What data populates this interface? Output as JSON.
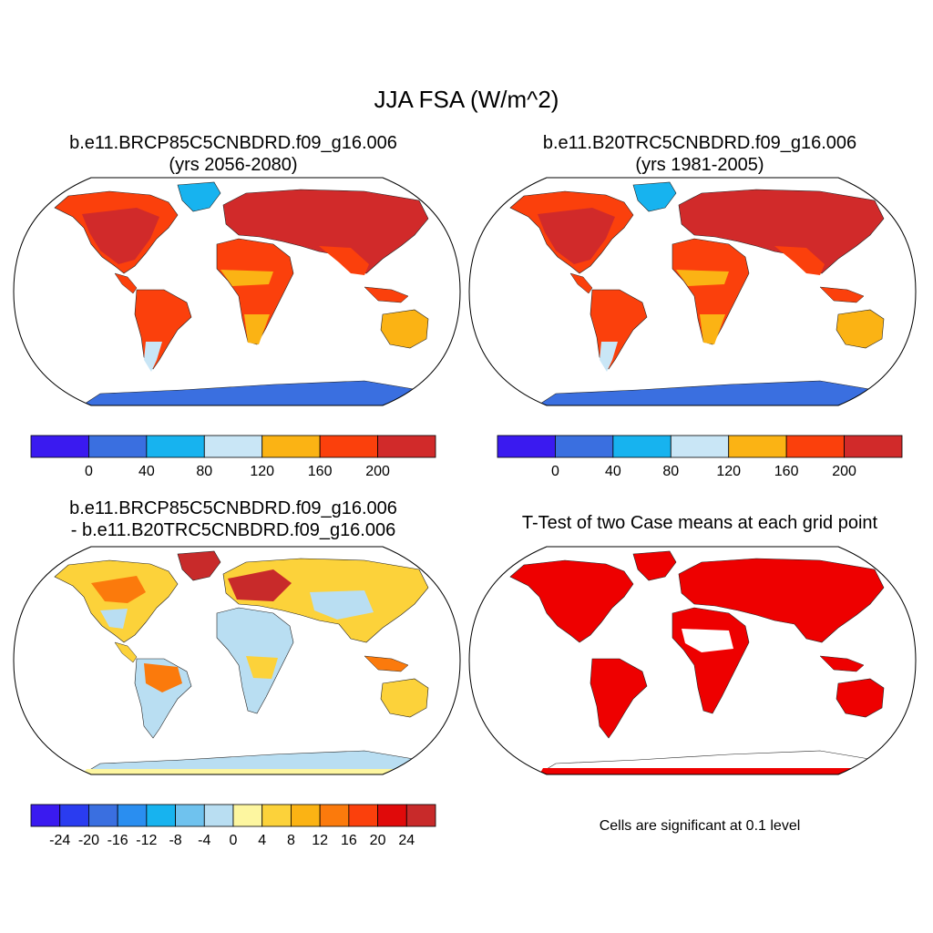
{
  "figure": {
    "title": "JJA FSA (W/m^2)",
    "panels": [
      {
        "id": "case",
        "title_line1": "b.e11.BRCP85C5CNBDRD.f09_g16.006",
        "title_line2": "(yrs 2056-2080)"
      },
      {
        "id": "control",
        "title_line1": "b.e11.B20TRC5CNBDRD.f09_g16.006",
        "title_line2": "(yrs 1981-2005)"
      },
      {
        "id": "difference",
        "title_line1": "b.e11.BRCP85C5CNBDRD.f09_g16.006",
        "title_line2": "- b.e11.B20TRC5CNBDRD.f09_g16.006"
      },
      {
        "id": "ttest",
        "title_line1": "T-Test of two Case means at each grid point",
        "note": "Cells are significant at 0.1 level"
      }
    ]
  },
  "colorbars": {
    "absolute": {
      "labels": [
        "0",
        "40",
        "80",
        "120",
        "160",
        "200"
      ],
      "colors": [
        "#3a1af0",
        "#3a6fe0",
        "#17b3ef",
        "#c9e6f6",
        "#fbb314",
        "#fb400c",
        "#d12a2a"
      ]
    },
    "difference": {
      "labels": [
        "-24",
        "-20",
        "-16",
        "-12",
        "-8",
        "-4",
        "0",
        "4",
        "8",
        "12",
        "16",
        "20",
        "24"
      ],
      "colors": [
        "#3a1af0",
        "#2a3cf0",
        "#3a6fe0",
        "#2a8ef0",
        "#17b3ef",
        "#6fc2ee",
        "#b9def2",
        "#fdf6a0",
        "#fcd23a",
        "#fbb314",
        "#fb7a0c",
        "#fb400c",
        "#e00a0a",
        "#c82a2a"
      ]
    }
  },
  "map_colors": {
    "ocean": "#ffffff",
    "antarctica_case": "#3a6fe0",
    "greenland_case": "#17b3ef",
    "significant": "#ee0000"
  }
}
